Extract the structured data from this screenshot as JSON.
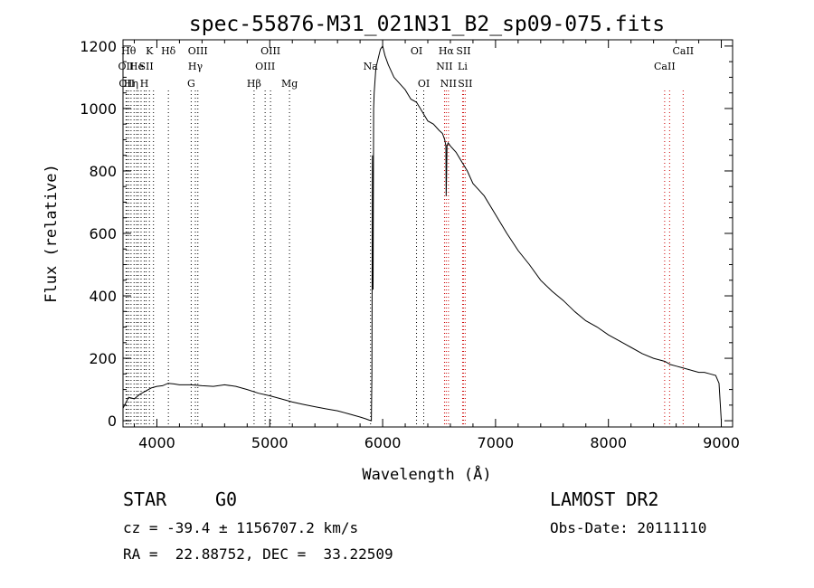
{
  "chart_data": {
    "type": "line",
    "title": "spec-55876-M31_021N31_B2_sp09-075.fits",
    "xlabel": "Wavelength (Å)",
    "ylabel": "Flux (relative)",
    "xlim": [
      3700,
      9100
    ],
    "ylim": [
      -20,
      1220
    ],
    "xticks": [
      4000,
      5000,
      6000,
      7000,
      8000,
      9000
    ],
    "yticks": [
      0,
      200,
      400,
      600,
      800,
      1000,
      1200
    ],
    "grid": false,
    "series": [
      {
        "color": "#000000",
        "x": [
          3700,
          3750,
          3800,
          3850,
          3900,
          3950,
          4000,
          4050,
          4100,
          4150,
          4200,
          4300,
          4400,
          4500,
          4600,
          4700,
          4800,
          4900,
          5000,
          5100,
          5200,
          5300,
          5400,
          5500,
          5600,
          5700,
          5800,
          5850,
          5880,
          5900,
          5905,
          5910,
          5915,
          5920,
          5925,
          5940,
          5960,
          5980,
          6000,
          6020,
          6050,
          6100,
          6150,
          6200,
          6250,
          6300,
          6350,
          6400,
          6450,
          6500,
          6530,
          6550,
          6560,
          6563,
          6566,
          6570,
          6580,
          6600,
          6650,
          6700,
          6750,
          6800,
          6850,
          6900,
          7000,
          7100,
          7200,
          7300,
          7400,
          7500,
          7600,
          7700,
          7800,
          7900,
          8000,
          8100,
          8200,
          8300,
          8400,
          8500,
          8550,
          8600,
          8650,
          8700,
          8750,
          8800,
          8850,
          8900,
          8950,
          8980,
          9000
        ],
        "y": [
          40,
          75,
          70,
          85,
          95,
          105,
          110,
          112,
          120,
          118,
          115,
          115,
          112,
          110,
          115,
          110,
          100,
          88,
          80,
          70,
          60,
          52,
          45,
          38,
          32,
          22,
          12,
          6,
          2,
          0,
          150,
          850,
          420,
          1000,
          1050,
          1130,
          1160,
          1190,
          1200,
          1170,
          1140,
          1100,
          1080,
          1060,
          1030,
          1020,
          990,
          960,
          950,
          930,
          920,
          900,
          880,
          720,
          780,
          880,
          890,
          880,
          860,
          830,
          800,
          760,
          740,
          720,
          660,
          600,
          545,
          500,
          450,
          415,
          385,
          350,
          320,
          300,
          275,
          255,
          235,
          215,
          200,
          190,
          180,
          175,
          170,
          165,
          160,
          155,
          155,
          150,
          145,
          120,
          0
        ]
      }
    ],
    "line_markers": [
      {
        "wavelength": 3727,
        "label": "OII",
        "row": 1,
        "color": "#000000"
      },
      {
        "wavelength": 3734,
        "label": "OII",
        "row": 2,
        "color": "#000000"
      },
      {
        "wavelength": 3750,
        "label": "Hθ",
        "row": 0,
        "color": "#000000"
      },
      {
        "wavelength": 3771,
        "label": "Hη",
        "row": 2,
        "color": "#000000"
      },
      {
        "wavelength": 3798,
        "label": "",
        "row": -1,
        "color": "#000000"
      },
      {
        "wavelength": 3820,
        "label": "He",
        "row": 1,
        "color": "#000000"
      },
      {
        "wavelength": 3835,
        "label": "",
        "row": -1,
        "color": "#000000"
      },
      {
        "wavelength": 3860,
        "label": "",
        "row": -1,
        "color": "#000000"
      },
      {
        "wavelength": 3889,
        "label": "H",
        "row": 2,
        "color": "#000000"
      },
      {
        "wavelength": 3905,
        "label": "SII",
        "row": 1,
        "color": "#000000"
      },
      {
        "wavelength": 3934,
        "label": "K",
        "row": 0,
        "color": "#000000"
      },
      {
        "wavelength": 3970,
        "label": "",
        "row": -1,
        "color": "#000000"
      },
      {
        "wavelength": 4102,
        "label": "Hδ",
        "row": 0,
        "color": "#000000"
      },
      {
        "wavelength": 4304,
        "label": "G",
        "row": 2,
        "color": "#000000"
      },
      {
        "wavelength": 4341,
        "label": "Hγ",
        "row": 1,
        "color": "#000000"
      },
      {
        "wavelength": 4363,
        "label": "OIII",
        "row": 0,
        "color": "#000000"
      },
      {
        "wavelength": 4861,
        "label": "Hβ",
        "row": 2,
        "color": "#000000"
      },
      {
        "wavelength": 4959,
        "label": "OIII",
        "row": 1,
        "color": "#000000"
      },
      {
        "wavelength": 5007,
        "label": "OIII",
        "row": 0,
        "color": "#000000"
      },
      {
        "wavelength": 5175,
        "label": "Mg",
        "row": 2,
        "color": "#000000"
      },
      {
        "wavelength": 5893,
        "label": "Na",
        "row": 1,
        "color": "#000000"
      },
      {
        "wavelength": 6300,
        "label": "OI",
        "row": 0,
        "color": "#000000"
      },
      {
        "wavelength": 6364,
        "label": "OI",
        "row": 2,
        "color": "#000000"
      },
      {
        "wavelength": 6548,
        "label": "NII",
        "row": 1,
        "color": "#cc0000"
      },
      {
        "wavelength": 6563,
        "label": "Hα",
        "row": 0,
        "color": "#cc0000"
      },
      {
        "wavelength": 6583,
        "label": "NII",
        "row": 2,
        "color": "#cc0000"
      },
      {
        "wavelength": 6708,
        "label": "Li",
        "row": 1,
        "color": "#cc0000"
      },
      {
        "wavelength": 6716,
        "label": "SII",
        "row": 0,
        "color": "#cc0000"
      },
      {
        "wavelength": 6731,
        "label": "SII",
        "row": 2,
        "color": "#cc0000"
      },
      {
        "wavelength": 8498,
        "label": "CaII",
        "row": 1,
        "color": "#cc0000"
      },
      {
        "wavelength": 8542,
        "label": "",
        "row": -1,
        "color": "#cc0000"
      },
      {
        "wavelength": 8662,
        "label": "CaII",
        "row": 0,
        "color": "#cc0000"
      }
    ]
  },
  "info": {
    "class_type": "STAR",
    "subclass": "G0",
    "survey": "LAMOST DR2",
    "cz": "cz = -39.4 ± 1156707.2 km/s",
    "obs_date": "Obs-Date: 20111110",
    "coords": "RA =  22.88752, DEC =  33.22509"
  }
}
